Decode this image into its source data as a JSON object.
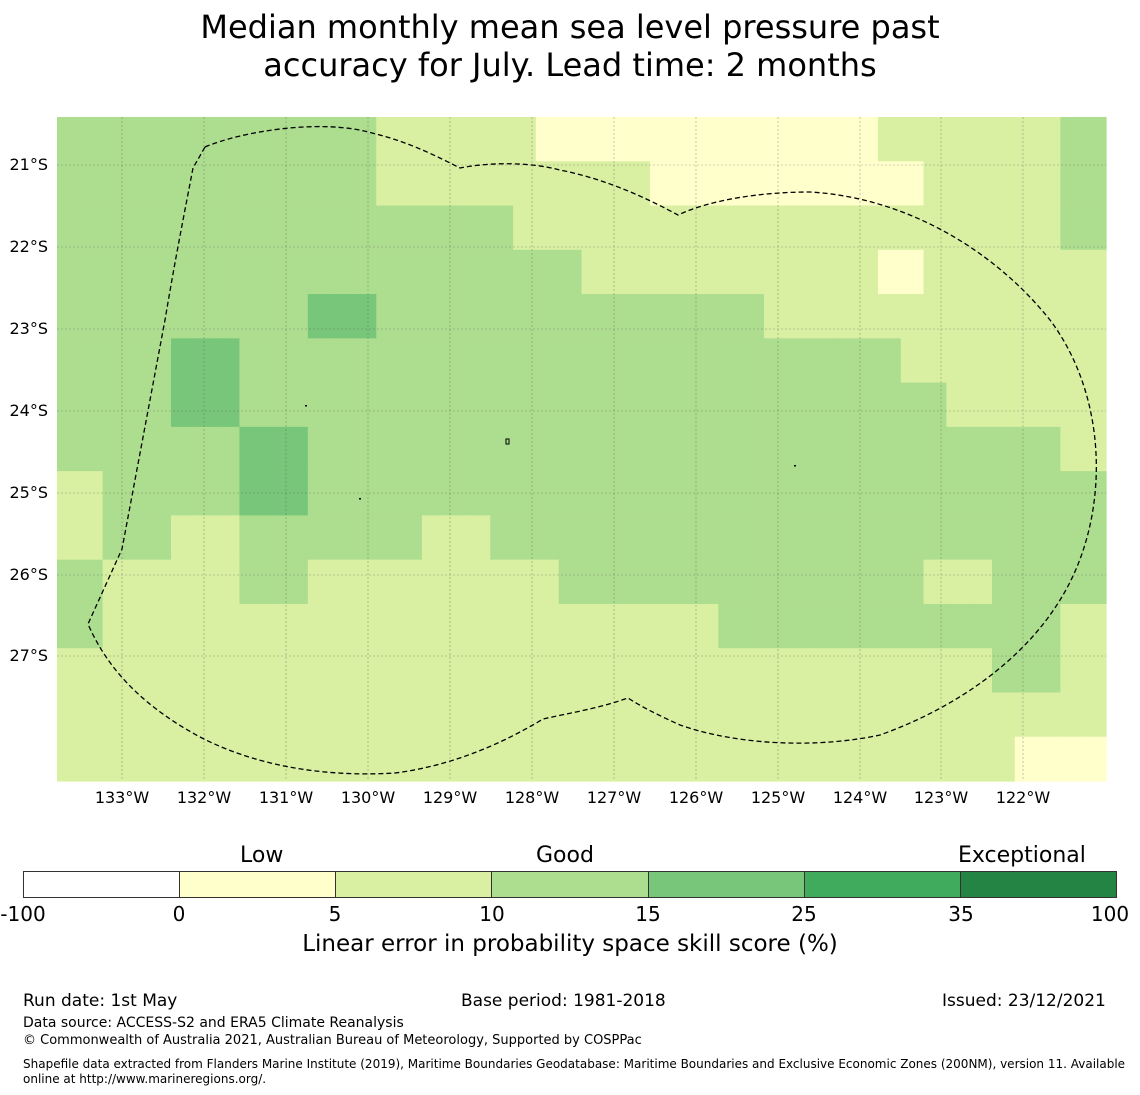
{
  "title": {
    "line1": "Median monthly mean sea level pressure past",
    "line2": "accuracy for July. Lead time: 2 months"
  },
  "map": {
    "lat_labels": [
      "21°S",
      "22°S",
      "23°S",
      "24°S",
      "25°S",
      "26°S",
      "27°S"
    ],
    "lon_labels": [
      "133°W",
      "132°W",
      "131°W",
      "130°W",
      "129°W",
      "128°W",
      "127°W",
      "126°W",
      "125°W",
      "124°W",
      "123°W",
      "122°W"
    ],
    "grid_levels_legend": "0 = 0–5 %, 1 = 5–10 %, 2 = 10–15 %, 3 = 15–25 %",
    "grid": [
      [
        2,
        2,
        2,
        2,
        2,
        2,
        2,
        2,
        2,
        2,
        2,
        2,
        2,
        2,
        1,
        1,
        1,
        1,
        1,
        1,
        1,
        0,
        0,
        0,
        0,
        0,
        0,
        0,
        0,
        0,
        0,
        0,
        0,
        0,
        0,
        0,
        1,
        1,
        1,
        1,
        1,
        1,
        1,
        1,
        2,
        2
      ],
      [
        2,
        2,
        2,
        2,
        2,
        2,
        2,
        2,
        2,
        2,
        2,
        2,
        2,
        2,
        1,
        1,
        1,
        1,
        1,
        1,
        1,
        1,
        1,
        1,
        1,
        1,
        0,
        0,
        0,
        0,
        0,
        0,
        0,
        0,
        0,
        0,
        0,
        0,
        1,
        1,
        1,
        1,
        1,
        1,
        2,
        2
      ],
      [
        2,
        2,
        2,
        2,
        2,
        2,
        2,
        2,
        2,
        2,
        2,
        2,
        2,
        2,
        2,
        2,
        2,
        2,
        2,
        2,
        1,
        1,
        1,
        1,
        1,
        1,
        1,
        1,
        1,
        1,
        1,
        1,
        1,
        1,
        1,
        1,
        1,
        1,
        1,
        1,
        1,
        1,
        1,
        1,
        2,
        2
      ],
      [
        2,
        2,
        2,
        2,
        2,
        2,
        2,
        2,
        2,
        2,
        2,
        2,
        2,
        2,
        2,
        2,
        2,
        2,
        2,
        2,
        2,
        2,
        2,
        1,
        1,
        1,
        1,
        1,
        1,
        1,
        1,
        1,
        1,
        1,
        1,
        1,
        0,
        0,
        1,
        1,
        1,
        1,
        1,
        1,
        1,
        1
      ],
      [
        2,
        2,
        2,
        2,
        2,
        2,
        2,
        2,
        2,
        2,
        2,
        3,
        3,
        3,
        2,
        2,
        2,
        2,
        2,
        2,
        2,
        2,
        2,
        2,
        2,
        2,
        2,
        2,
        2,
        2,
        2,
        1,
        1,
        1,
        1,
        1,
        1,
        1,
        1,
        1,
        1,
        1,
        1,
        1,
        1,
        1
      ],
      [
        2,
        2,
        2,
        2,
        2,
        3,
        3,
        3,
        2,
        2,
        2,
        2,
        2,
        2,
        2,
        2,
        2,
        2,
        2,
        2,
        2,
        2,
        2,
        2,
        2,
        2,
        2,
        2,
        2,
        2,
        2,
        2,
        2,
        2,
        2,
        2,
        2,
        1,
        1,
        1,
        1,
        1,
        1,
        1,
        1,
        1
      ],
      [
        2,
        2,
        2,
        2,
        2,
        3,
        3,
        3,
        2,
        2,
        2,
        2,
        2,
        2,
        2,
        2,
        2,
        2,
        2,
        2,
        2,
        2,
        2,
        2,
        2,
        2,
        2,
        2,
        2,
        2,
        2,
        2,
        2,
        2,
        2,
        2,
        2,
        2,
        2,
        1,
        1,
        1,
        1,
        1,
        1,
        1
      ],
      [
        2,
        2,
        2,
        2,
        2,
        2,
        2,
        2,
        3,
        3,
        3,
        2,
        2,
        2,
        2,
        2,
        2,
        2,
        2,
        2,
        2,
        2,
        2,
        2,
        2,
        2,
        2,
        2,
        2,
        2,
        2,
        2,
        2,
        2,
        2,
        2,
        2,
        2,
        2,
        2,
        2,
        2,
        2,
        2,
        1,
        1
      ],
      [
        1,
        1,
        2,
        2,
        2,
        2,
        2,
        2,
        3,
        3,
        3,
        2,
        2,
        2,
        2,
        2,
        2,
        2,
        2,
        2,
        2,
        2,
        2,
        2,
        2,
        2,
        2,
        2,
        2,
        2,
        2,
        2,
        2,
        2,
        2,
        2,
        2,
        2,
        2,
        2,
        2,
        2,
        2,
        2,
        2,
        2
      ],
      [
        1,
        1,
        2,
        2,
        2,
        1,
        1,
        1,
        2,
        2,
        2,
        2,
        2,
        2,
        2,
        2,
        1,
        1,
        1,
        2,
        2,
        2,
        2,
        2,
        2,
        2,
        2,
        2,
        2,
        2,
        2,
        2,
        2,
        2,
        2,
        2,
        2,
        2,
        2,
        2,
        2,
        2,
        2,
        2,
        2,
        2
      ],
      [
        2,
        2,
        1,
        1,
        1,
        1,
        1,
        1,
        2,
        2,
        2,
        1,
        1,
        1,
        1,
        1,
        1,
        1,
        1,
        1,
        1,
        1,
        2,
        2,
        2,
        2,
        2,
        2,
        2,
        2,
        2,
        2,
        2,
        2,
        2,
        2,
        2,
        2,
        1,
        1,
        1,
        2,
        2,
        2,
        2,
        2
      ],
      [
        2,
        2,
        1,
        1,
        1,
        1,
        1,
        1,
        1,
        1,
        1,
        1,
        1,
        1,
        1,
        1,
        1,
        1,
        1,
        1,
        1,
        1,
        1,
        1,
        1,
        1,
        1,
        1,
        1,
        2,
        2,
        2,
        2,
        2,
        2,
        2,
        2,
        2,
        2,
        2,
        2,
        2,
        2,
        2,
        1,
        1
      ],
      [
        1,
        1,
        1,
        1,
        1,
        1,
        1,
        1,
        1,
        1,
        1,
        1,
        1,
        1,
        1,
        1,
        1,
        1,
        1,
        1,
        1,
        1,
        1,
        1,
        1,
        1,
        1,
        1,
        1,
        1,
        1,
        1,
        1,
        1,
        1,
        1,
        1,
        1,
        1,
        1,
        1,
        2,
        2,
        2,
        1,
        1
      ],
      [
        1,
        1,
        1,
        1,
        1,
        1,
        1,
        1,
        1,
        1,
        1,
        1,
        1,
        1,
        1,
        1,
        1,
        1,
        1,
        1,
        1,
        1,
        1,
        1,
        1,
        1,
        1,
        1,
        1,
        1,
        1,
        1,
        1,
        1,
        1,
        1,
        1,
        1,
        1,
        1,
        1,
        1,
        1,
        1,
        1,
        1
      ],
      [
        1,
        1,
        1,
        1,
        1,
        1,
        1,
        1,
        1,
        1,
        1,
        1,
        1,
        1,
        1,
        1,
        1,
        1,
        1,
        1,
        1,
        1,
        1,
        1,
        1,
        1,
        1,
        1,
        1,
        1,
        1,
        1,
        1,
        1,
        1,
        1,
        1,
        1,
        1,
        1,
        1,
        1,
        0,
        0,
        0,
        0
      ]
    ]
  },
  "colorbar": {
    "categories": [
      "Low",
      "Good",
      "Exceptional"
    ],
    "ticks": [
      "-100",
      "0",
      "5",
      "10",
      "15",
      "25",
      "35",
      "100"
    ],
    "colors": [
      "#ffffff",
      "#ffffcc",
      "#d9f0a3",
      "#addd8e",
      "#78c679",
      "#41ab5d",
      "#238443"
    ],
    "label": "Linear error in probability space skill score (%)"
  },
  "footer": {
    "run_date": "Run date: 1st May",
    "base_period": "Base period: 1981-2018",
    "issued": "Issued: 23/12/2021",
    "data_source": "Data source: ACCESS-S2 and ERA5 Climate Reanalysis",
    "copyright": "© Commonwealth of Australia 2021, Australian Bureau of Meteorology, Supported by COSPPac",
    "shapefile_line1": "Shapefile data extracted from Flanders Marine Institute (2019), Maritime Boundaries Geodatabase: Maritime Boundaries and Exclusive Economic Zones (200NM), version 11. Available",
    "shapefile_line2": "online at http://www.marineregions.org/."
  }
}
